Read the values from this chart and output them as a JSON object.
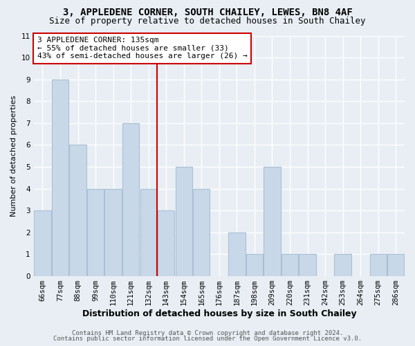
{
  "title1": "3, APPLEDENE CORNER, SOUTH CHAILEY, LEWES, BN8 4AF",
  "title2": "Size of property relative to detached houses in South Chailey",
  "xlabel": "Distribution of detached houses by size in South Chailey",
  "ylabel": "Number of detached properties",
  "categories": [
    "66sqm",
    "77sqm",
    "88sqm",
    "99sqm",
    "110sqm",
    "121sqm",
    "132sqm",
    "143sqm",
    "154sqm",
    "165sqm",
    "176sqm",
    "187sqm",
    "198sqm",
    "209sqm",
    "220sqm",
    "231sqm",
    "242sqm",
    "253sqm",
    "264sqm",
    "275sqm",
    "286sqm"
  ],
  "values": [
    3,
    9,
    6,
    4,
    4,
    7,
    4,
    3,
    5,
    4,
    0,
    2,
    1,
    5,
    1,
    1,
    0,
    1,
    0,
    1,
    1
  ],
  "bar_color": "#c8d8e8",
  "bar_edgecolor": "#a8c0d4",
  "bar_linewidth": 0.8,
  "vline_x": 6.5,
  "vline_color": "#cc0000",
  "annotation_line1": "3 APPLEDENE CORNER: 135sqm",
  "annotation_line2": "← 55% of detached houses are smaller (33)",
  "annotation_line3": "43% of semi-detached houses are larger (26) →",
  "annotation_box_edgecolor": "#cc0000",
  "annotation_box_facecolor": "#ffffff",
  "ylim": [
    0,
    11
  ],
  "yticks": [
    0,
    1,
    2,
    3,
    4,
    5,
    6,
    7,
    8,
    9,
    10,
    11
  ],
  "background_color": "#e8eef4",
  "grid_color": "#ffffff",
  "footer1": "Contains HM Land Registry data © Crown copyright and database right 2024.",
  "footer2": "Contains public sector information licensed under the Open Government Licence v3.0.",
  "title1_fontsize": 10,
  "title2_fontsize": 9,
  "xlabel_fontsize": 9,
  "ylabel_fontsize": 8,
  "tick_fontsize": 7.5,
  "annotation_fontsize": 8,
  "footer_fontsize": 6.5
}
